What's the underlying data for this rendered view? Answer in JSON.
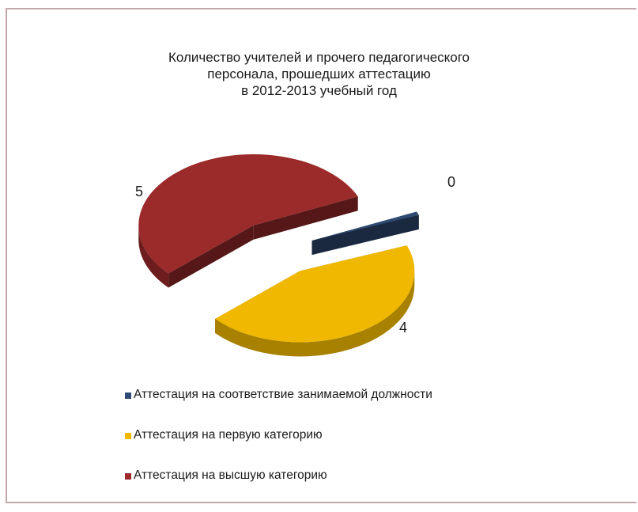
{
  "chart_data": {
    "type": "pie",
    "title_lines": [
      "Количество учителей и прочего педагогического",
      "персонала, прошедших аттестацию",
      "в 2012-2013 учебный год"
    ],
    "categories": [
      "Аттестация на соответствие занимаемой должности",
      "Аттестация на первую категорию",
      "Аттестация на высшую категорию"
    ],
    "values": [
      0,
      4,
      5
    ],
    "data_labels": [
      "0",
      "4",
      "5"
    ],
    "colors": [
      "#2f4b73",
      "#f0b800",
      "#9b2a2a"
    ],
    "legend_position": "bottom",
    "style": "3d-exploded"
  }
}
